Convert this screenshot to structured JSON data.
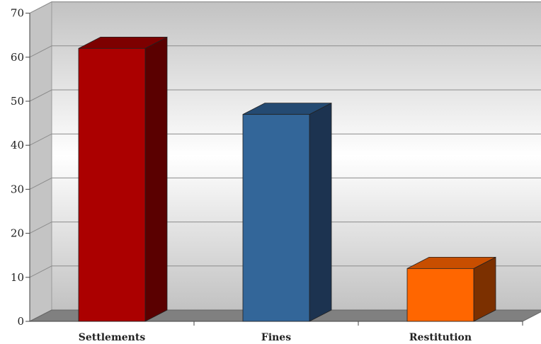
{
  "chart_data": {
    "type": "bar",
    "categories": [
      "Settlements",
      "Fines",
      "Restitution"
    ],
    "values": [
      62,
      47,
      12
    ],
    "ylim": [
      0,
      70
    ],
    "yticks": [
      0,
      10,
      20,
      30,
      40,
      50,
      60,
      70
    ],
    "grid": true,
    "three_d": true,
    "colors": {
      "Settlements": {
        "front": "#ab0000",
        "side": "#5a0000",
        "top": "#7d0000"
      },
      "Fines": {
        "front": "#336699",
        "side": "#1c3350",
        "top": "#244a72"
      },
      "Restitution": {
        "front": "#ff6600",
        "side": "#7c3000",
        "top": "#c84e00"
      }
    },
    "wall_color": "#c4c4c4",
    "floor_color": "#808080"
  }
}
